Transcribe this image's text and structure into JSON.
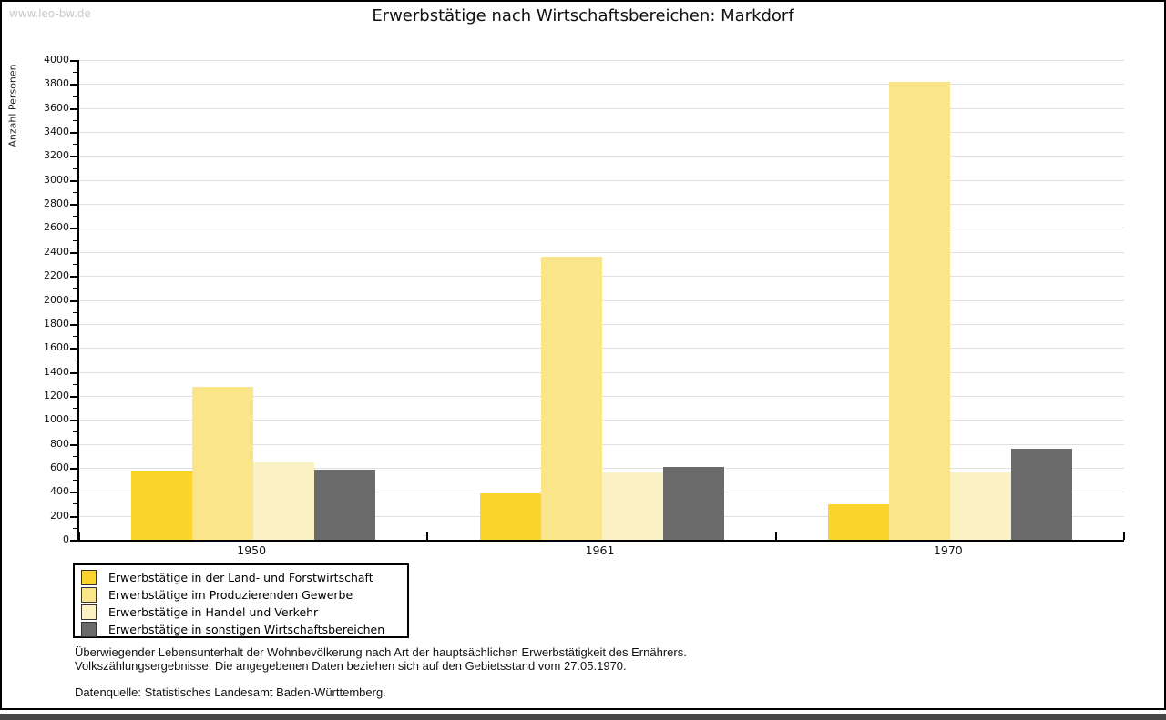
{
  "watermark": "www.leo-bw.de",
  "title": "Erwerbstätige nach Wirtschaftsbereichen: Markdorf",
  "footer": {
    "line1": "Überwiegender Lebensunterhalt der Wohnbevölkerung nach Art der hauptsächlichen Erwerbstätigkeit des Ernährers.",
    "line2": "Volkszählungsergebnisse. Die angegebenen Daten beziehen sich auf den Gebietsstand vom 27.05.1970.",
    "source": "Datenquelle: Statistisches Landesamt Baden-Württemberg."
  },
  "chart_data": {
    "type": "bar",
    "title": "Erwerbstätige nach Wirtschaftsbereichen: Markdorf",
    "xlabel": "",
    "ylabel": "Anzahl Personen",
    "ylim": [
      0,
      4000
    ],
    "ytick_step": 200,
    "yminor_step": 100,
    "grid": "horizontal",
    "legend_position": "bottom-left",
    "categories": [
      "1950",
      "1961",
      "1970"
    ],
    "series": [
      {
        "name": "Erwerbstätige in der Land- und Forstwirtschaft",
        "color": "#FCD42D",
        "values": [
          580,
          385,
          295
        ]
      },
      {
        "name": "Erwerbstätige im Produzierenden Gewerbe",
        "color": "#FBE58B",
        "values": [
          1275,
          2360,
          3820
        ]
      },
      {
        "name": "Erwerbstätige in Handel und Verkehr",
        "color": "#FBF2C4",
        "values": [
          645,
          565,
          565
        ]
      },
      {
        "name": "Erwerbstätige in sonstigen Wirtschaftsbereichen",
        "color": "#6B6B6B",
        "values": [
          585,
          610,
          760
        ]
      }
    ]
  },
  "colors": {
    "grid": "#E0E0E0",
    "axis": "#000000",
    "watermark": "#C9C9C9",
    "title_text": "#111111",
    "bottom_bar": "#474747"
  }
}
